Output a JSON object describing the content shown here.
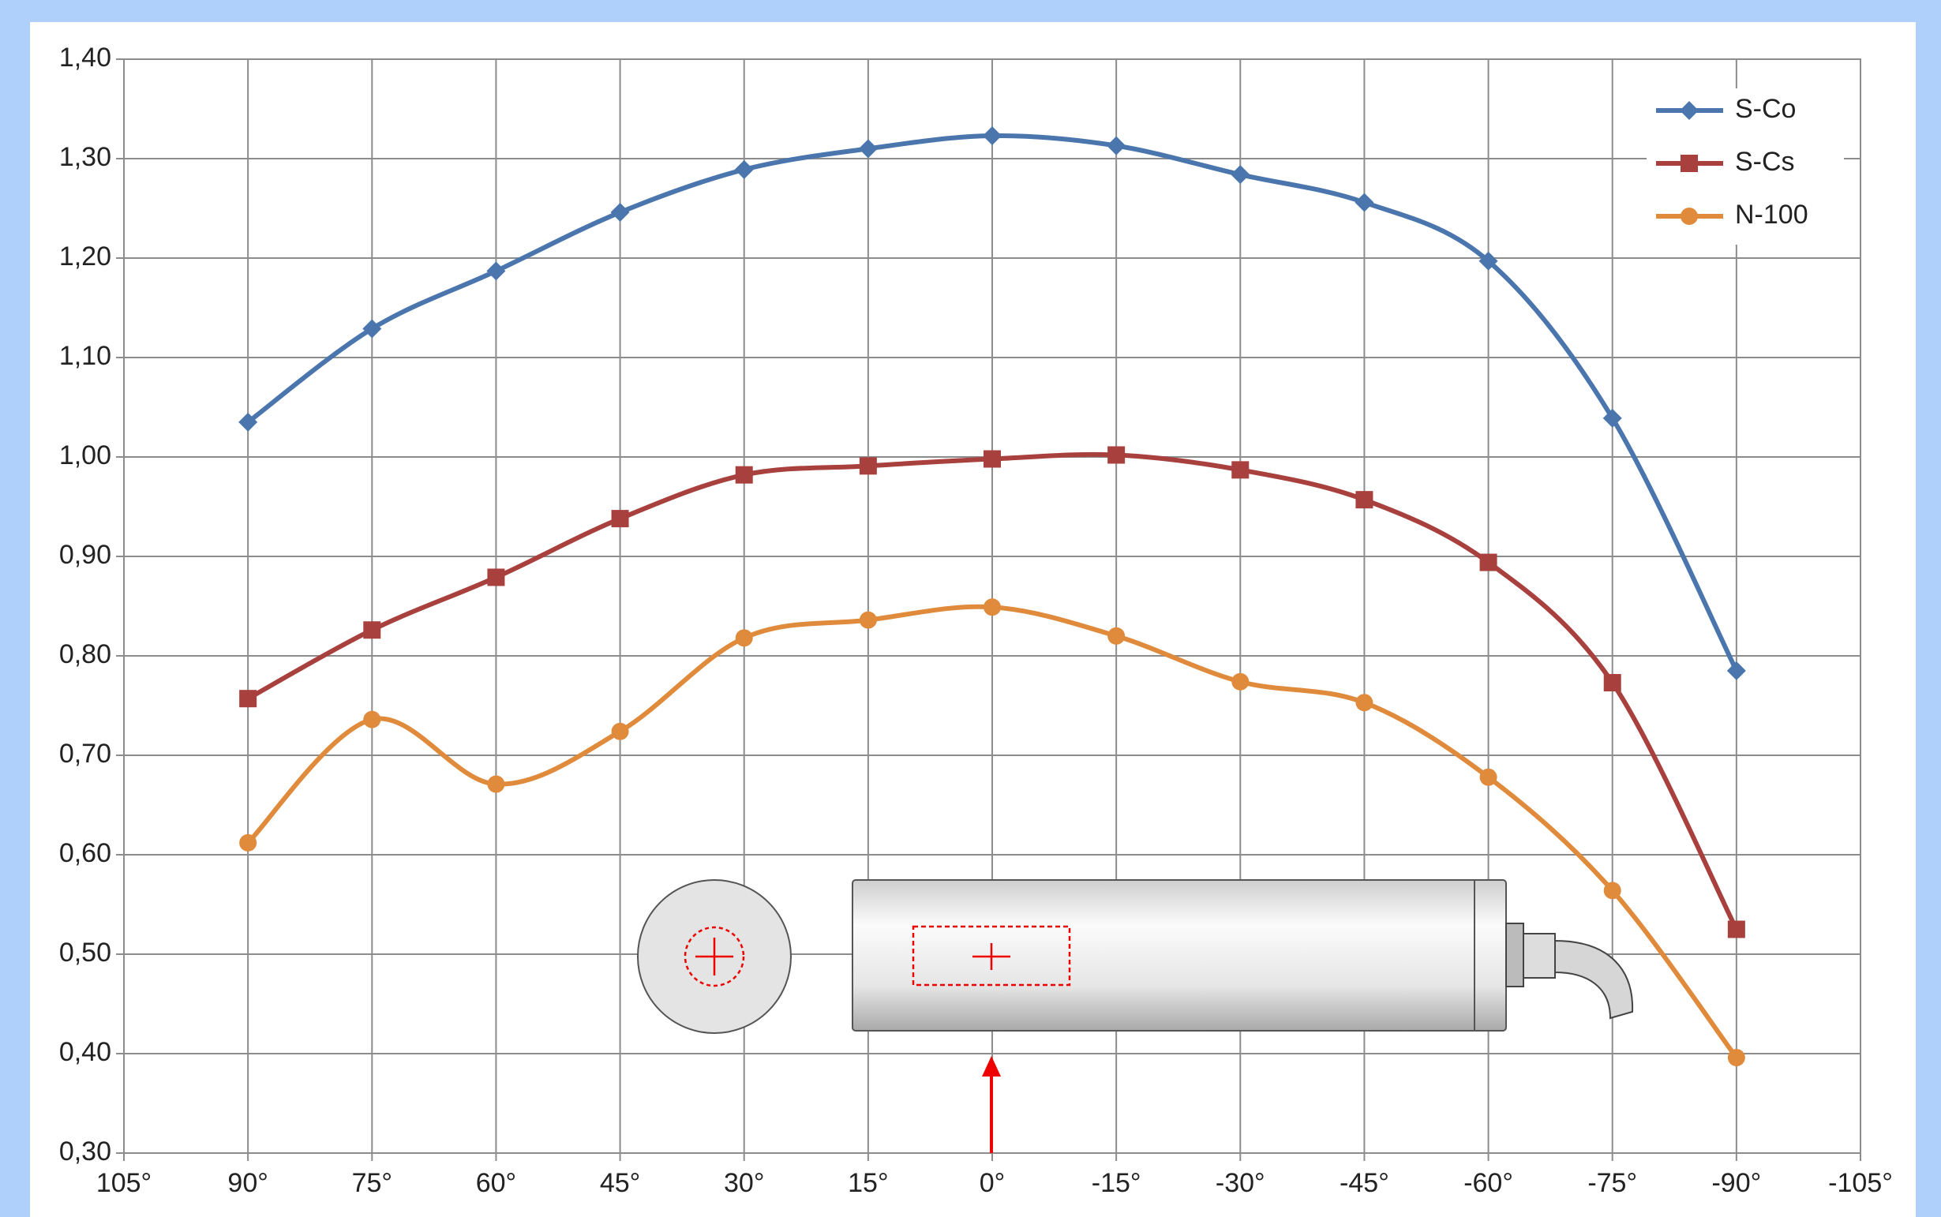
{
  "chart_data": {
    "type": "line",
    "x": [
      90,
      75,
      60,
      45,
      30,
      15,
      0,
      -15,
      -30,
      -45,
      -60,
      -75,
      -90
    ],
    "series": [
      {
        "name": "S-Co",
        "color": "#4a76ad",
        "marker": "diamond",
        "values": [
          1.035,
          1.129,
          1.187,
          1.246,
          1.289,
          1.31,
          1.323,
          1.313,
          1.284,
          1.256,
          1.197,
          1.039,
          0.785
        ]
      },
      {
        "name": "S-Cs",
        "color": "#a8403d",
        "marker": "square",
        "values": [
          0.757,
          0.826,
          0.879,
          0.938,
          0.982,
          0.991,
          0.998,
          1.002,
          0.987,
          0.957,
          0.894,
          0.773,
          0.525
        ]
      },
      {
        "name": "N-100",
        "color": "#e08a3c",
        "marker": "circle",
        "values": [
          0.612,
          0.736,
          0.671,
          0.724,
          0.818,
          0.836,
          0.849,
          0.82,
          0.774,
          0.753,
          0.678,
          0.564,
          0.396
        ]
      }
    ],
    "xlim": [
      105,
      -105
    ],
    "xticks": [
      {
        "value": 105,
        "label": "105°"
      },
      {
        "value": 90,
        "label": "90°"
      },
      {
        "value": 75,
        "label": "75°"
      },
      {
        "value": 60,
        "label": "60°"
      },
      {
        "value": 45,
        "label": "45°"
      },
      {
        "value": 30,
        "label": "30°"
      },
      {
        "value": 15,
        "label": "15°"
      },
      {
        "value": 0,
        "label": "0°"
      },
      {
        "value": -15,
        "label": "-15°"
      },
      {
        "value": -30,
        "label": "-30°"
      },
      {
        "value": -45,
        "label": "-45°"
      },
      {
        "value": -60,
        "label": "-60°"
      },
      {
        "value": -75,
        "label": "-75°"
      },
      {
        "value": -90,
        "label": "-90°"
      },
      {
        "value": -105,
        "label": "-105°"
      }
    ],
    "ylim": [
      0.3,
      1.4
    ],
    "yticks": [
      {
        "value": 0.3,
        "label": "0,30"
      },
      {
        "value": 0.4,
        "label": "0,40"
      },
      {
        "value": 0.5,
        "label": "0,50"
      },
      {
        "value": 0.6,
        "label": "0,60"
      },
      {
        "value": 0.7,
        "label": "0,70"
      },
      {
        "value": 0.8,
        "label": "0,80"
      },
      {
        "value": 0.9,
        "label": "0,90"
      },
      {
        "value": 1.0,
        "label": "1,00"
      },
      {
        "value": 1.1,
        "label": "1,10"
      },
      {
        "value": 1.2,
        "label": "1,20"
      },
      {
        "value": 1.3,
        "label": "1,30"
      },
      {
        "value": 1.4,
        "label": "1,40"
      }
    ],
    "grid": true,
    "smooth": true,
    "legend": "upper right"
  }
}
